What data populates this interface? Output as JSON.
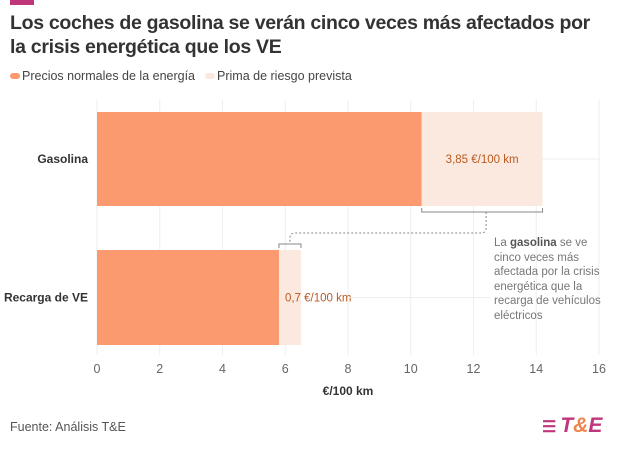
{
  "title": "Los coches de gasolina se verán cinco veces más afectados por la crisis energética que los VE",
  "legend": [
    {
      "label": "Precios normales de la energía",
      "color": "#fb9a6f"
    },
    {
      "label": "Prima de riesgo prevista",
      "color": "#fbe9e0"
    }
  ],
  "chart_data": {
    "type": "bar",
    "orientation": "horizontal",
    "stacked": true,
    "categories": [
      "Gasolina",
      "Recarga de VE"
    ],
    "series": [
      {
        "name": "Precios normales de la energía",
        "values": [
          10.35,
          5.8
        ],
        "color": "#fb9a6f"
      },
      {
        "name": "Prima de riesgo prevista",
        "values": [
          3.85,
          0.7
        ],
        "color": "#fbe9e0"
      }
    ],
    "data_labels": [
      "3,85 €/100 km",
      "0,7 €/100 km"
    ],
    "xlabel": "€/100 km",
    "xlim": [
      0,
      16
    ],
    "xticks": [
      "0",
      "2",
      "4",
      "6",
      "8",
      "10",
      "12",
      "14",
      "16"
    ],
    "grid": true
  },
  "annotation": {
    "pre": "La ",
    "bold": "gasolina",
    "post": " se ve cinco veces más afectada por la crisis energética que la recarga de vehículos eléctricos"
  },
  "source": "Fuente: Análisis T&E",
  "logo": {
    "text": "T&E"
  }
}
